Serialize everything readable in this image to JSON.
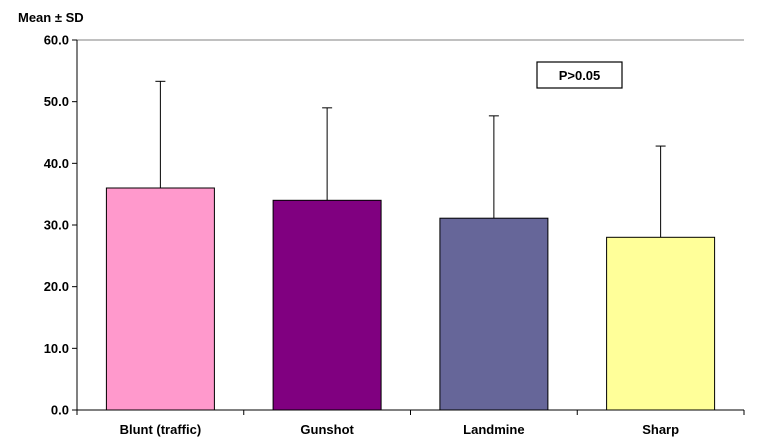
{
  "chart_data": {
    "type": "bar",
    "title": "",
    "xlabel": "",
    "ylabel": "Mean ± SD",
    "categories": [
      "Blunt (traffic)",
      "Gunshot",
      "Landmine",
      "Sharp"
    ],
    "values": [
      36.0,
      34.0,
      31.1,
      28.0
    ],
    "error_upper": [
      53.3,
      49.0,
      47.7,
      42.8
    ],
    "ylim": [
      0,
      60
    ],
    "yticks": [
      "0.0",
      "10.0",
      "20.0",
      "30.0",
      "40.0",
      "50.0",
      "60.0"
    ],
    "colors": [
      "#ff99cc",
      "#800080",
      "#666699",
      "#ffff99"
    ],
    "annotation": "P>0.05",
    "grid": false
  }
}
